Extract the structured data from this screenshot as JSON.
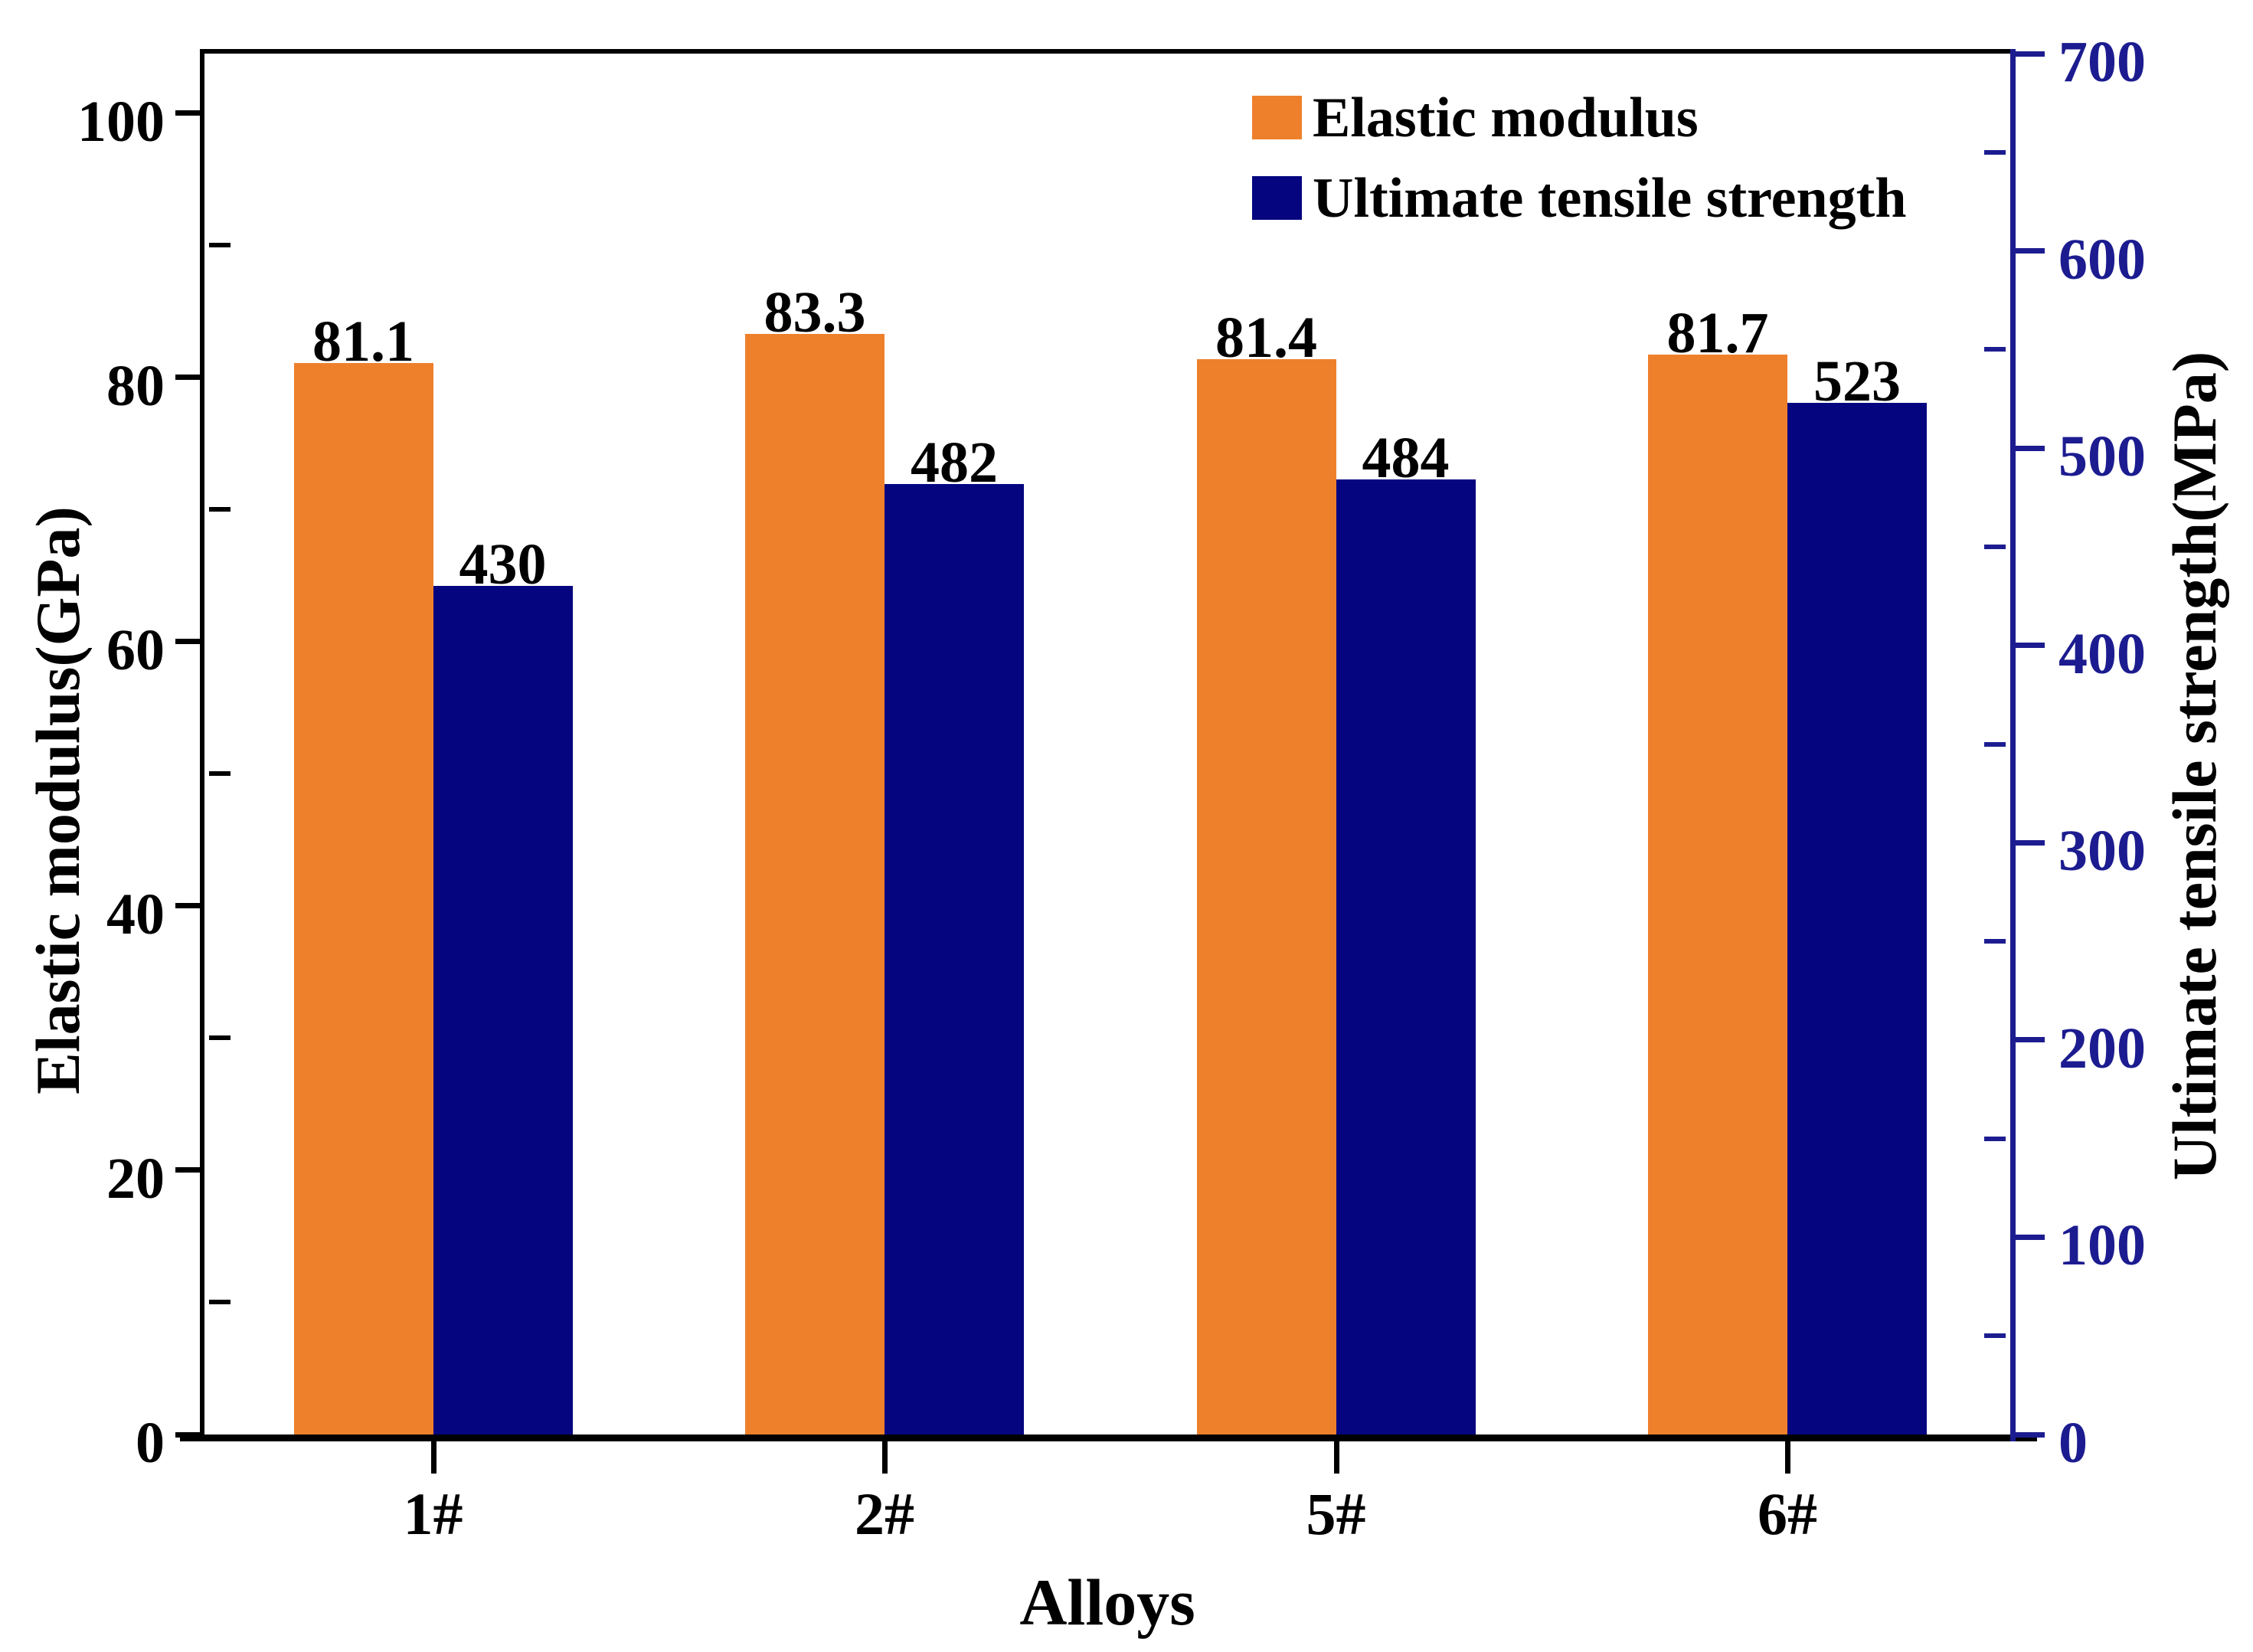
{
  "chart_data": {
    "type": "bar",
    "title": "",
    "xlabel": "Alloys",
    "categories": [
      "1#",
      "2#",
      "5#",
      "6#"
    ],
    "series": [
      {
        "name": "Elastic modulus",
        "axis": "left",
        "color": "#EE802C",
        "values": [
          81.1,
          83.3,
          81.4,
          81.7
        ],
        "value_labels": [
          "81.1",
          "83.3",
          "81.4",
          "81.7"
        ]
      },
      {
        "name": "Ultimate tensile strength",
        "axis": "right",
        "color": "#050580",
        "values": [
          430,
          482,
          484,
          523
        ],
        "value_labels": [
          "430",
          "482",
          "484",
          "523"
        ]
      }
    ],
    "left_axis": {
      "label": "Elastic modulus(GPa)",
      "min": 0,
      "max": 104.5,
      "major_ticks": [
        0,
        20,
        40,
        60,
        80,
        100
      ],
      "minor_ticks": [
        10,
        30,
        50,
        70,
        90
      ],
      "color": "#000000"
    },
    "right_axis": {
      "label": "Ultimate tensile strength(MPa)",
      "min": 0,
      "max": 700,
      "major_ticks": [
        0,
        100,
        200,
        300,
        400,
        500,
        600,
        700
      ],
      "minor_ticks": [
        50,
        150,
        250,
        350,
        450,
        550,
        650
      ],
      "color": "#1C1C90"
    },
    "legend": {
      "position": "top-right",
      "entries": [
        {
          "label": "Elastic modulus",
          "color": "#EE802C"
        },
        {
          "label": "Ultimate tensile strength",
          "color": "#050580"
        }
      ]
    },
    "grid": "off",
    "value_labels_shown": true
  }
}
